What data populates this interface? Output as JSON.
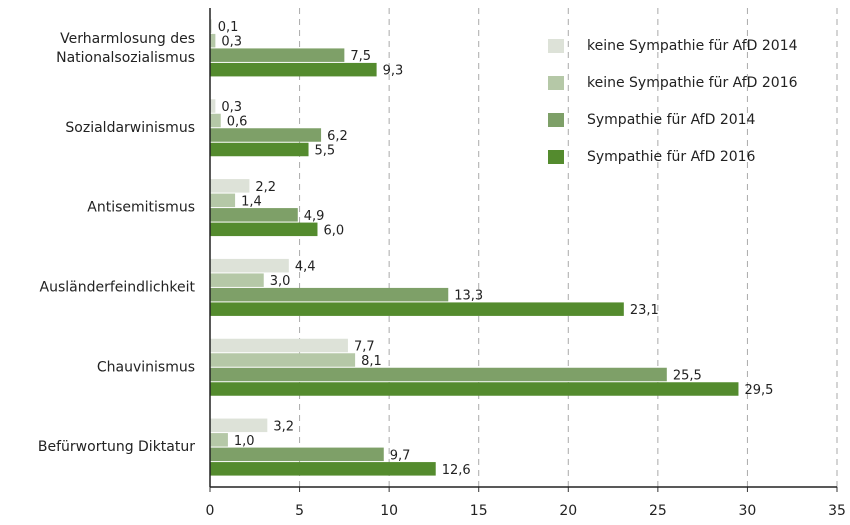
{
  "chart_data": {
    "type": "hbar",
    "categories": [
      "Verharmlosung des Nationalsozialismus",
      "Sozialdarwinismus",
      "Antisemitismus",
      "Ausländerfeindlichkeit",
      "Chauvinismus",
      "Befürwortung Diktatur"
    ],
    "series": [
      {
        "name": "keine Sympathie für AfD 2014",
        "color": "#dde2d8",
        "values": [
          0.1,
          0.3,
          2.2,
          4.4,
          7.7,
          3.2
        ],
        "value_labels": [
          "0,1",
          "0,3",
          "2,2",
          "4,4",
          "7,7",
          "3,2"
        ]
      },
      {
        "name": "keine Sympathie für AfD 2016",
        "color": "#b5c8a7",
        "values": [
          0.3,
          0.6,
          1.4,
          3.0,
          8.1,
          1.0
        ],
        "value_labels": [
          "0,3",
          "0,6",
          "1,4",
          "3,0",
          "8,1",
          "1,0"
        ]
      },
      {
        "name": "Sympathie für AfD 2014",
        "color": "#7ea068",
        "values": [
          7.5,
          6.2,
          4.9,
          13.3,
          25.5,
          9.7
        ],
        "value_labels": [
          "7,5",
          "6,2",
          "4,9",
          "13,3",
          "25,5",
          "9,7"
        ]
      },
      {
        "name": "Sympathie für AfD 2016",
        "color": "#548b2e",
        "values": [
          9.3,
          5.5,
          6.0,
          23.1,
          29.5,
          12.6
        ],
        "value_labels": [
          "9,3",
          "5,5",
          "6,0",
          "23,1",
          "29,5",
          "12,6"
        ]
      }
    ],
    "xlim": [
      0,
      35
    ],
    "xticks": [
      0,
      5,
      10,
      15,
      20,
      25,
      30,
      35
    ],
    "grid": true,
    "legend": "upper right"
  }
}
